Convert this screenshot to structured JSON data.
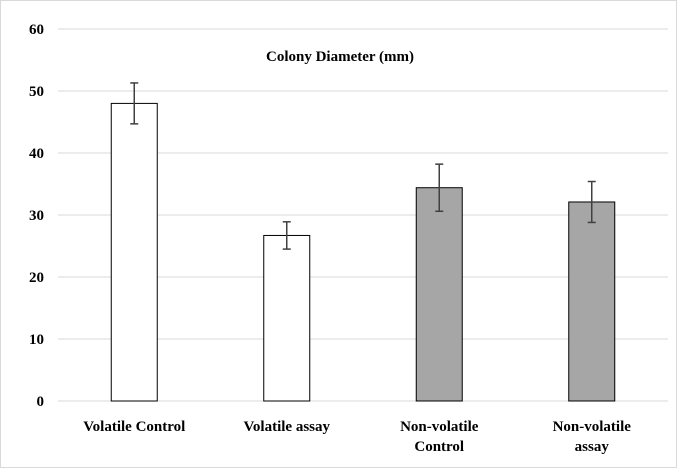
{
  "chart_data": {
    "type": "bar",
    "title": "Colony Diameter (mm)",
    "xlabel": "",
    "ylabel": "",
    "ylim": [
      0,
      60
    ],
    "yticks": [
      0,
      10,
      20,
      30,
      40,
      50,
      60
    ],
    "grid": true,
    "legend": "none",
    "categories": [
      [
        "Volatile Control"
      ],
      [
        "Volatile assay"
      ],
      [
        "Non-volatile",
        "Control"
      ],
      [
        "Non-volatile",
        "assay"
      ]
    ],
    "values": [
      48,
      26.7,
      34.4,
      32.1
    ],
    "error": [
      3.3,
      2.2,
      3.8,
      3.3
    ],
    "colors": [
      "#ffffff",
      "#ffffff",
      "#a6a6a6",
      "#a6a6a6"
    ],
    "bar_stroke": "#000000",
    "gridline_color": "#d9d9d9",
    "error_color": "#404040"
  }
}
